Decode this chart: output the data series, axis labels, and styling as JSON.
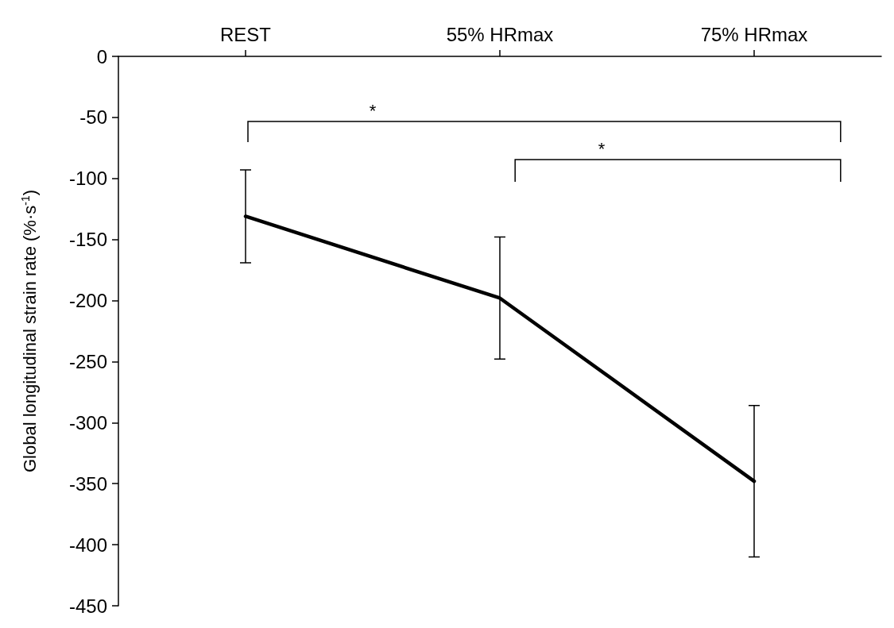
{
  "chart_data": {
    "type": "line",
    "ylabel": "Global longitudinal strain rate (%·s$^{-1}$)",
    "categories": [
      "REST",
      "55% HRmax",
      "75% HRmax"
    ],
    "series": [
      {
        "color": "#000000",
        "values": [
          -131,
          -198,
          -348
        ],
        "errors": [
          38,
          50,
          62
        ]
      }
    ],
    "ylim": [
      -450,
      0
    ],
    "yticks": [
      0,
      -50,
      -100,
      -150,
      -200,
      -250,
      -300,
      -350,
      -400,
      -450
    ],
    "grid": false,
    "marker": "none",
    "line_style": "solid",
    "annotations": [
      "*",
      "*"
    ]
  }
}
